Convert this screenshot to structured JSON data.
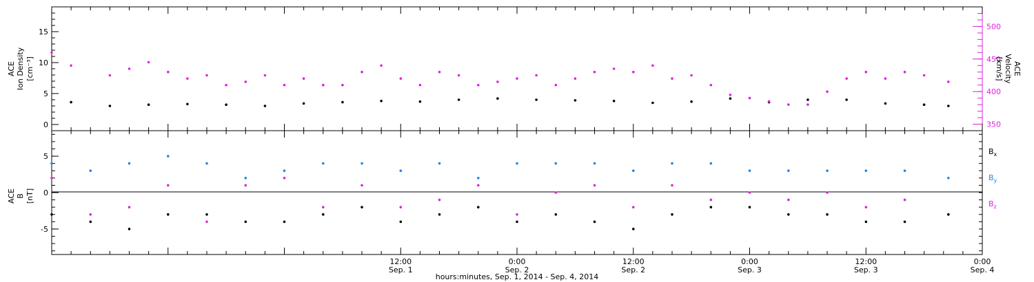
{
  "chart_data": [
    {
      "type": "scatter",
      "panel": "top",
      "ylabel_lines": [
        "ACE",
        "Ion Density",
        "[cm⁻³]"
      ],
      "ylabel2_lines": [
        "ACE",
        "Velocity",
        "[km/s]"
      ],
      "ylim": [
        -1,
        19
      ],
      "y_ticks": [
        0,
        5,
        10,
        15
      ],
      "ylim2": [
        340,
        530
      ],
      "y2_ticks": [
        350,
        400,
        450,
        500
      ],
      "xlim_hours": [
        -36,
        60
      ],
      "grid": false,
      "series": [
        {
          "axis": "left",
          "color": "#000000",
          "x_hours": [
            -34,
            -30,
            -26,
            -22,
            -18,
            -14,
            -10,
            -6,
            -2,
            2,
            6,
            10,
            14,
            18,
            22,
            26,
            30,
            34,
            38,
            42,
            46,
            50,
            54,
            56.5
          ],
          "values": [
            3.6,
            3.0,
            3.2,
            3.3,
            3.2,
            3.0,
            3.4,
            3.6,
            3.8,
            3.7,
            4.0,
            4.2,
            4.0,
            3.9,
            3.8,
            3.5,
            3.7,
            4.2,
            3.6,
            4.0,
            4.0,
            3.4,
            3.2,
            3.0
          ]
        },
        {
          "axis": "right",
          "color": "#e020e0",
          "x_hours": [
            -36,
            -34,
            -30,
            -28,
            -26,
            -24,
            -22,
            -20,
            -18,
            -16,
            -14,
            -12,
            -10,
            -8,
            -6,
            -4,
            -2,
            0,
            2,
            4,
            6,
            8,
            10,
            12,
            14,
            16,
            18,
            20,
            22,
            24,
            26,
            28,
            30,
            32,
            34,
            36,
            38,
            40,
            42,
            44,
            46,
            48,
            50,
            52,
            54,
            56.5
          ],
          "values": [
            460,
            440,
            425,
            435,
            445,
            430,
            420,
            425,
            410,
            415,
            425,
            410,
            420,
            410,
            410,
            430,
            440,
            420,
            410,
            430,
            425,
            410,
            415,
            420,
            425,
            410,
            420,
            430,
            435,
            430,
            440,
            420,
            425,
            410,
            395,
            390,
            385,
            380,
            380,
            400,
            420,
            430,
            420,
            430,
            425,
            415
          ]
        }
      ]
    },
    {
      "type": "scatter",
      "panel": "bottom",
      "ylabel_lines": [
        "ACE",
        "B",
        "[nT]"
      ],
      "ylim": [
        -8.5,
        8.5
      ],
      "y_ticks": [
        -5,
        0,
        5
      ],
      "xlim_hours": [
        -36,
        60
      ],
      "zero_line": true,
      "grid": false,
      "series": [
        {
          "name": "Bx",
          "color": "#000000",
          "x_hours": [
            -36,
            -32,
            -28,
            -24,
            -20,
            -16,
            -12,
            -8,
            -4,
            0,
            4,
            8,
            12,
            16,
            20,
            24,
            28,
            32,
            36,
            40,
            44,
            48,
            52,
            56.5
          ],
          "values": [
            -3,
            -4,
            -5,
            -3,
            -3,
            -4,
            -4,
            -3,
            -2,
            -4,
            -3,
            -2,
            -4,
            -3,
            -4,
            -5,
            -3,
            -2,
            -2,
            -3,
            -3,
            -4,
            -4,
            -3
          ]
        },
        {
          "name": "By",
          "color": "#1e88e5",
          "x_hours": [
            -36,
            -32,
            -28,
            -24,
            -20,
            -16,
            -12,
            -8,
            -4,
            0,
            4,
            8,
            12,
            16,
            20,
            24,
            28,
            32,
            36,
            40,
            44,
            48,
            52,
            56.5
          ],
          "values": [
            4,
            3,
            4,
            5,
            4,
            2,
            3,
            4,
            4,
            3,
            4,
            2,
            4,
            4,
            4,
            3,
            4,
            4,
            3,
            3,
            3,
            3,
            3,
            2
          ]
        },
        {
          "name": "Bz",
          "color": "#e020e0",
          "x_hours": [
            -36,
            -32,
            -28,
            -24,
            -20,
            -16,
            -12,
            -8,
            -4,
            0,
            4,
            8,
            12,
            16,
            20,
            24,
            28,
            32,
            36,
            40,
            44,
            48,
            52,
            56.5
          ],
          "values": [
            2,
            -3,
            -2,
            1,
            -4,
            1,
            2,
            -2,
            1,
            -2,
            -1,
            1,
            -3,
            0,
            1,
            -2,
            1,
            -1,
            0,
            -1,
            0,
            -2,
            -1,
            -3
          ]
        }
      ]
    }
  ],
  "x_axis": {
    "ticks": [
      {
        "hours": 0,
        "time": "12:00",
        "date": "Sep. 1"
      },
      {
        "hours": 12,
        "time": "0:00",
        "date": "Sep. 2"
      },
      {
        "hours": 24,
        "time": "12:00",
        "date": "Sep. 2"
      },
      {
        "hours": 36,
        "time": "0:00",
        "date": "Sep. 3"
      },
      {
        "hours": 48,
        "time": "12:00",
        "date": "Sep. 3"
      },
      {
        "hours": 60,
        "time": "0:00",
        "date": "Sep. 4"
      }
    ],
    "title": "hours:minutes, Sep.  1, 2014 - Sep.  4, 2014"
  },
  "legend": [
    {
      "main": "B",
      "sub": "x",
      "color": "#000000"
    },
    {
      "main": "B",
      "sub": "y",
      "color": "#1e88e5"
    },
    {
      "main": "B",
      "sub": "z",
      "color": "#e020e0"
    }
  ]
}
